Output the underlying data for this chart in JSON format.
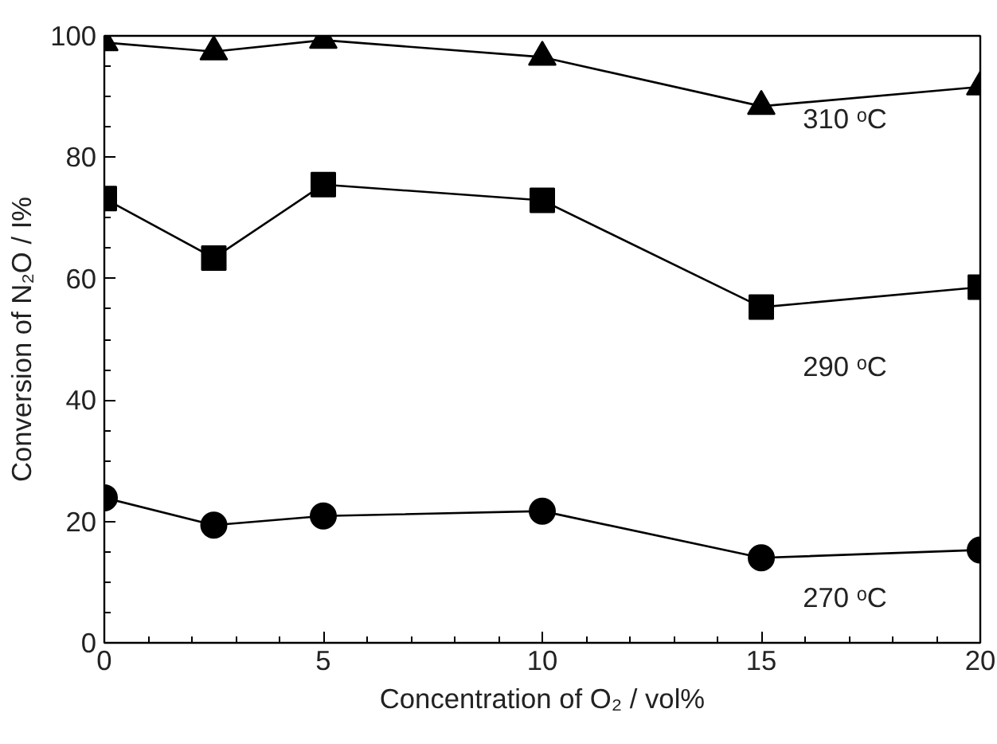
{
  "chart_data": {
    "type": "line",
    "xlabel": "Concentration of O₂ / vol%",
    "ylabel": "Conversion of N₂O / I%",
    "x": [
      0,
      2.5,
      5,
      10,
      15,
      20
    ],
    "series": [
      {
        "name": "310 ᵒC",
        "color": "#000000",
        "marker": "triangle",
        "values": [
          98.9,
          97.4,
          99.3,
          96.5,
          88.4,
          91.6
        ]
      },
      {
        "name": "290 ᵒC",
        "color": "#000000",
        "marker": "square",
        "values": [
          73.2,
          63.4,
          75.5,
          72.9,
          55.3,
          58.6
        ]
      },
      {
        "name": "270 ᵒC",
        "color": "#000000",
        "marker": "circle",
        "values": [
          23.9,
          19.4,
          20.9,
          21.7,
          14.0,
          15.3
        ]
      }
    ],
    "xlim": [
      0,
      20
    ],
    "ylim": [
      0,
      100
    ],
    "xticks": [
      0,
      5,
      10,
      15,
      20
    ],
    "yticks": [
      0,
      20,
      40,
      60,
      80,
      100
    ],
    "grid": false,
    "line_style": "solid"
  }
}
